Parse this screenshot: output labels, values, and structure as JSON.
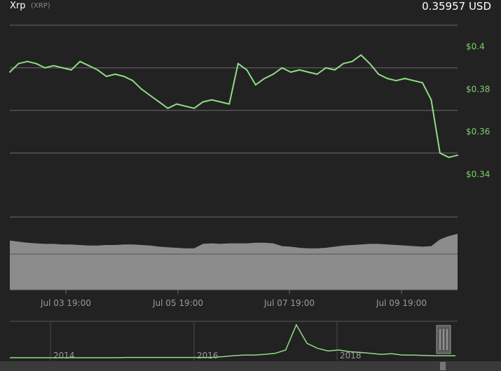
{
  "header": {
    "name": "Xrp",
    "ticker": "(XRP)",
    "price": "0.35957 USD"
  },
  "colors": {
    "background": "#222222",
    "line": "#8fdc84",
    "volume": "#8c8c8c",
    "grid": "#6b6b6b",
    "price_axis_text": "#7fcf6e"
  },
  "chart_data": {
    "type": "line",
    "ylim": [
      0.32,
      0.41
    ],
    "y_ticks": [
      0.34,
      0.36,
      0.38,
      0.4
    ],
    "y_tick_labels": [
      "$0.34",
      "$0.36",
      "$0.38",
      "$0.4"
    ],
    "x_tick_labels": [
      "Jul 03 19:00",
      "Jul 05 19:00",
      "Jul 07 19:00",
      "Jul 09 19:00"
    ],
    "grid": true,
    "series": [
      {
        "values": [
          0.388,
          0.392,
          0.393,
          0.392,
          0.39,
          0.391,
          0.39,
          0.389,
          0.393,
          0.391,
          0.389,
          0.386,
          0.387,
          0.386,
          0.384,
          0.38,
          0.377,
          0.374,
          0.371,
          0.373,
          0.372,
          0.371,
          0.374,
          0.375,
          0.374,
          0.373,
          0.392,
          0.389,
          0.382,
          0.385,
          0.387,
          0.39,
          0.388,
          0.389,
          0.388,
          0.387,
          0.39,
          0.389,
          0.392,
          0.393,
          0.396,
          0.392,
          0.387,
          0.385,
          0.384,
          0.385,
          0.384,
          0.383,
          0.375,
          0.35,
          0.348,
          0.349
        ]
      }
    ],
    "volume": [
      0.88,
      0.86,
      0.84,
      0.83,
      0.82,
      0.82,
      0.81,
      0.81,
      0.8,
      0.79,
      0.79,
      0.8,
      0.8,
      0.81,
      0.81,
      0.8,
      0.79,
      0.77,
      0.76,
      0.75,
      0.74,
      0.74,
      0.82,
      0.83,
      0.82,
      0.83,
      0.83,
      0.83,
      0.84,
      0.84,
      0.83,
      0.78,
      0.77,
      0.75,
      0.74,
      0.74,
      0.75,
      0.77,
      0.79,
      0.8,
      0.81,
      0.82,
      0.82,
      0.81,
      0.8,
      0.79,
      0.78,
      0.77,
      0.78,
      0.9,
      0.96,
      1.0
    ],
    "navigator": {
      "x_tick_labels": [
        "2014",
        "2016",
        "2018"
      ],
      "values": [
        0.02,
        0.02,
        0.02,
        0.02,
        0.02,
        0.02,
        0.02,
        0.02,
        0.02,
        0.02,
        0.02,
        0.03,
        0.03,
        0.03,
        0.03,
        0.03,
        0.03,
        0.03,
        0.03,
        0.03,
        0.05,
        0.08,
        0.1,
        0.1,
        0.12,
        0.15,
        0.25,
        1.0,
        0.45,
        0.3,
        0.22,
        0.25,
        0.2,
        0.18,
        0.15,
        0.12,
        0.14,
        0.1,
        0.1,
        0.09,
        0.08,
        0.08,
        0.08
      ]
    }
  }
}
